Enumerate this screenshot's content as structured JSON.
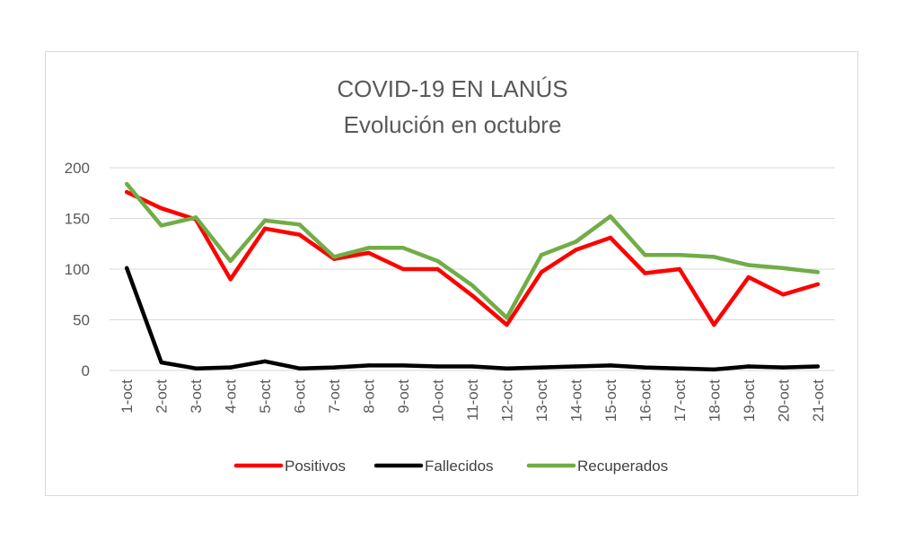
{
  "chart_data": {
    "type": "line",
    "title": "COVID-19 EN LANÚS",
    "subtitle": "Evolución en octubre",
    "xlabel": "",
    "ylabel": "",
    "ylim": [
      0,
      200
    ],
    "yticks": [
      0,
      50,
      100,
      150,
      200
    ],
    "grid": true,
    "legend_position": "bottom",
    "categories": [
      "1-oct",
      "2-oct",
      "3-oct",
      "4-oct",
      "5-oct",
      "6-oct",
      "7-oct",
      "8-oct",
      "9-oct",
      "10-oct",
      "11-oct",
      "12-oct",
      "13-oct",
      "14-oct",
      "15-oct",
      "16-oct",
      "17-oct",
      "18-oct",
      "19-oct",
      "20-oct",
      "21-oct"
    ],
    "series": [
      {
        "name": "Positivos",
        "color": "#ff0000",
        "values": [
          176,
          160,
          149,
          90,
          140,
          134,
          110,
          116,
          100,
          100,
          74,
          45,
          97,
          119,
          131,
          96,
          100,
          45,
          92,
          75,
          85
        ]
      },
      {
        "name": "Fallecidos",
        "color": "#000000",
        "values": [
          101,
          8,
          2,
          3,
          9,
          2,
          3,
          5,
          5,
          4,
          4,
          2,
          3,
          4,
          5,
          3,
          2,
          1,
          4,
          3,
          4
        ]
      },
      {
        "name": "Recuperados",
        "color": "#70ad47",
        "values": [
          184,
          143,
          151,
          108,
          148,
          144,
          112,
          121,
          121,
          108,
          84,
          52,
          114,
          127,
          152,
          114,
          114,
          112,
          104,
          101,
          97
        ]
      }
    ]
  }
}
